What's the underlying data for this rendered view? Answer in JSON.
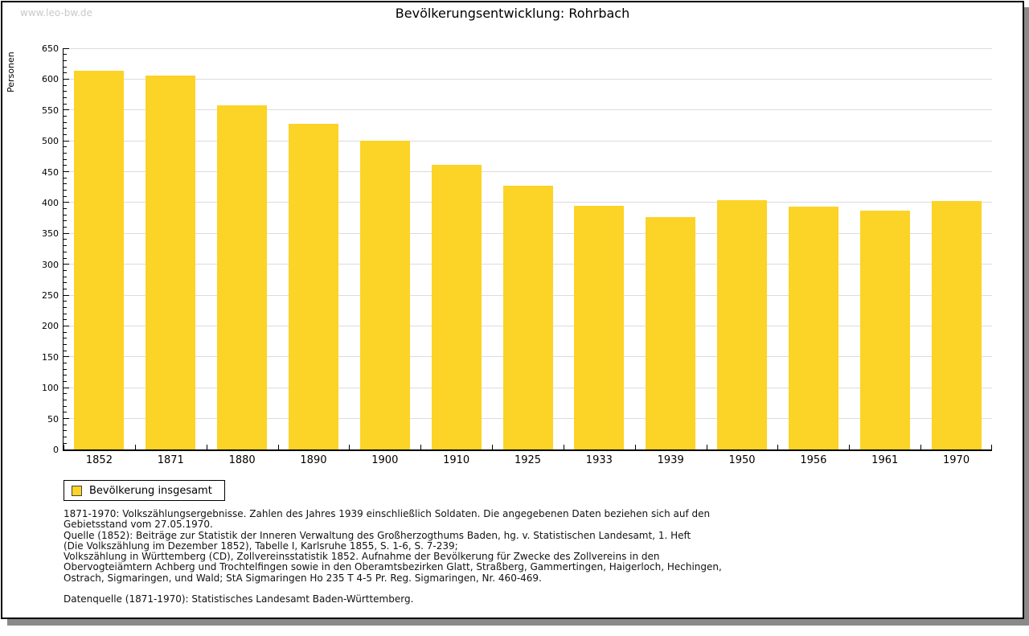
{
  "watermark": "www.leo-bw.de",
  "title": "Bevölkerungsentwicklung: Rohrbach",
  "legend": {
    "label": "Bevölkerung insgesamt"
  },
  "colors": {
    "bar": "#fcd327",
    "grid": "#dcdcdc",
    "axis": "#000000",
    "watermark": "#c9c9c9",
    "shadow": "#8a8a8a"
  },
  "chart_data": {
    "type": "bar",
    "title": "Bevölkerungsentwicklung: Rohrbach",
    "xlabel": "",
    "ylabel": "Personen",
    "ylim": [
      0,
      650
    ],
    "yticks": [
      0,
      50,
      100,
      150,
      200,
      250,
      300,
      350,
      400,
      450,
      500,
      550,
      600,
      650
    ],
    "ytick_minor_step": 10,
    "grid": true,
    "legend_position": "bottom-left",
    "categories": [
      "1852",
      "1871",
      "1880",
      "1890",
      "1900",
      "1910",
      "1925",
      "1933",
      "1939",
      "1950",
      "1956",
      "1961",
      "1970"
    ],
    "series": [
      {
        "name": "Bevölkerung insgesamt",
        "values": [
          613,
          606,
          557,
          527,
          500,
          461,
          427,
          395,
          377,
          404,
          393,
          387,
          402
        ]
      }
    ]
  },
  "footnotes": {
    "lines": [
      "1871-1970: Volkszählungsergebnisse. Zahlen des Jahres 1939 einschließlich Soldaten. Die angegebenen Daten beziehen sich auf den",
      "Gebietsstand vom 27.05.1970.",
      "Quelle (1852): Beiträge zur Statistik der Inneren Verwaltung des Großherzogthums Baden, hg. v. Statistischen Landesamt, 1. Heft",
      "(Die Volkszählung im Dezember 1852), Tabelle I, Karlsruhe 1855, S. 1-6, S. 7-239;",
      "Volkszählung in Württemberg (CD), Zollvereinsstatistik 1852. Aufnahme der Bevölkerung für Zwecke des Zollvereins in den",
      "Obervogteiämtern Achberg und Trochtelfingen sowie in den Oberamtsbezirken Glatt, Straßberg, Gammertingen, Haigerloch, Hechingen,",
      "Ostrach, Sigmaringen, und Wald; StA Sigmaringen Ho 235 T 4-5 Pr. Reg. Sigmaringen, Nr. 460-469."
    ],
    "datasource": "Datenquelle (1871-1970): Statistisches Landesamt Baden-Württemberg."
  }
}
